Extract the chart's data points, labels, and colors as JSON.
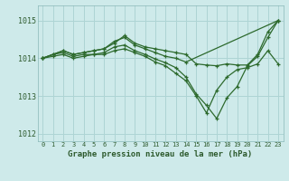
{
  "background_color": "#ceeaea",
  "grid_color": "#aed4d4",
  "line_color": "#2d6a2d",
  "title": "Graphe pression niveau de la mer (hPa)",
  "xlim": [
    -0.5,
    23.5
  ],
  "ylim": [
    1011.8,
    1015.4
  ],
  "yticks": [
    1012,
    1013,
    1014,
    1015
  ],
  "xticks": [
    0,
    1,
    2,
    3,
    4,
    5,
    6,
    7,
    8,
    9,
    10,
    11,
    12,
    13,
    14,
    15,
    16,
    17,
    18,
    19,
    20,
    21,
    22,
    23
  ],
  "series": [
    {
      "x": [
        0,
        1,
        2,
        3,
        4,
        5,
        6,
        7,
        8,
        9,
        10,
        11,
        12,
        13,
        14,
        15,
        16,
        17,
        18,
        19,
        20,
        21,
        22,
        23
      ],
      "y": [
        1014.0,
        1014.1,
        1014.2,
        1014.1,
        1014.15,
        1014.2,
        1014.25,
        1014.4,
        1014.6,
        1014.4,
        1014.3,
        1014.25,
        1014.2,
        1014.15,
        1014.1,
        1013.85,
        1013.82,
        1013.8,
        1013.85,
        1013.82,
        1013.82,
        1014.1,
        1014.7,
        1015.0
      ]
    },
    {
      "x": [
        0,
        2,
        3,
        4,
        5,
        6,
        7,
        8,
        9,
        10,
        11,
        12,
        13,
        14,
        23
      ],
      "y": [
        1014.0,
        1014.2,
        1014.1,
        1014.15,
        1014.2,
        1014.25,
        1014.45,
        1014.55,
        1014.35,
        1014.25,
        1014.15,
        1014.05,
        1014.0,
        1013.9,
        1015.0
      ]
    },
    {
      "x": [
        0,
        1,
        2,
        3,
        4,
        5,
        6,
        7,
        8,
        9,
        10,
        11,
        12,
        13,
        14,
        15,
        16,
        17,
        18,
        19,
        20,
        21,
        22,
        23
      ],
      "y": [
        1014.0,
        1014.1,
        1014.15,
        1014.05,
        1014.1,
        1014.1,
        1014.15,
        1014.3,
        1014.35,
        1014.2,
        1014.1,
        1013.98,
        1013.88,
        1013.75,
        1013.5,
        1013.05,
        1012.75,
        1012.4,
        1012.95,
        1013.25,
        1013.8,
        1014.05,
        1014.55,
        1015.0
      ]
    },
    {
      "x": [
        0,
        1,
        2,
        3,
        4,
        5,
        6,
        7,
        8,
        9,
        10,
        11,
        12,
        13,
        14,
        15,
        16,
        17,
        18,
        19,
        20,
        21,
        22,
        23
      ],
      "y": [
        1014.0,
        1014.05,
        1014.1,
        1014.0,
        1014.05,
        1014.1,
        1014.1,
        1014.2,
        1014.25,
        1014.15,
        1014.05,
        1013.9,
        1013.8,
        1013.6,
        1013.4,
        1013.0,
        1012.55,
        1013.15,
        1013.5,
        1013.7,
        1013.75,
        1013.85,
        1014.2,
        1013.85
      ]
    }
  ]
}
